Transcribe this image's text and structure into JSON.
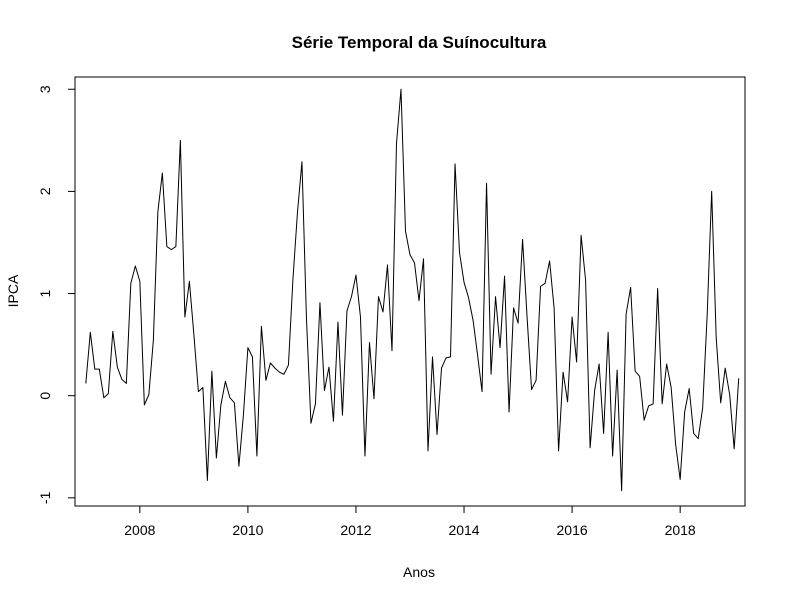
{
  "chart_data": {
    "type": "line",
    "title": "Série Temporal da Suínocultura",
    "xlabel": "Anos",
    "ylabel": "IPCA",
    "xlim": [
      2006.8,
      2019.2
    ],
    "ylim": [
      -1.08,
      3.12
    ],
    "x_start": 2007.0,
    "x_step": 0.0833333,
    "x_ticks": [
      2008,
      2010,
      2012,
      2014,
      2016,
      2018
    ],
    "x_tick_labels": [
      "2008",
      "2010",
      "2012",
      "2014",
      "2016",
      "2018"
    ],
    "y_ticks": [
      -1,
      0,
      1,
      2,
      3
    ],
    "y_tick_labels": [
      "-1",
      "0",
      "1",
      "2",
      "3"
    ],
    "grid": false,
    "series": [
      {
        "values": [
          0.12,
          0.62,
          0.26,
          0.26,
          -0.02,
          0.02,
          0.63,
          0.28,
          0.16,
          0.12,
          1.1,
          1.27,
          1.12,
          -0.09,
          0.01,
          0.54,
          1.8,
          2.18,
          1.46,
          1.43,
          1.46,
          2.5,
          0.77,
          1.12,
          0.6,
          0.04,
          0.08,
          -0.83,
          0.24,
          -0.61,
          -0.09,
          0.14,
          -0.02,
          -0.07,
          -0.69,
          -0.19,
          0.47,
          0.38,
          -0.59,
          0.68,
          0.15,
          0.32,
          0.27,
          0.23,
          0.21,
          0.3,
          1.14,
          1.79,
          2.29,
          0.76,
          -0.27,
          -0.08,
          0.91,
          0.05,
          0.28,
          -0.25,
          0.72,
          -0.19,
          0.83,
          0.97,
          1.18,
          0.77,
          -0.59,
          0.52,
          -0.03,
          0.97,
          0.82,
          1.28,
          0.44,
          2.47,
          3.0,
          1.61,
          1.38,
          1.3,
          0.93,
          1.34,
          -0.54,
          0.38,
          -0.38,
          0.27,
          0.37,
          0.38,
          2.27,
          1.4,
          1.11,
          0.96,
          0.74,
          0.4,
          0.04,
          2.08,
          0.21,
          0.97,
          0.47,
          1.17,
          -0.16,
          0.86,
          0.71,
          1.53,
          0.77,
          0.06,
          0.15,
          1.07,
          1.1,
          1.32,
          0.86,
          -0.54,
          0.23,
          -0.06,
          0.77,
          0.33,
          1.57,
          1.13,
          -0.51,
          0.05,
          0.31,
          -0.37,
          0.62,
          -0.59,
          0.25,
          -0.93,
          0.8,
          1.06,
          0.24,
          0.19,
          -0.24,
          -0.1,
          -0.08,
          1.05,
          -0.08,
          0.31,
          0.08,
          -0.48,
          -0.82,
          -0.16,
          0.07,
          -0.37,
          -0.42,
          -0.12,
          0.79,
          2.0,
          0.57,
          -0.07,
          0.27,
          0.01,
          -0.52,
          0.17
        ]
      }
    ]
  }
}
